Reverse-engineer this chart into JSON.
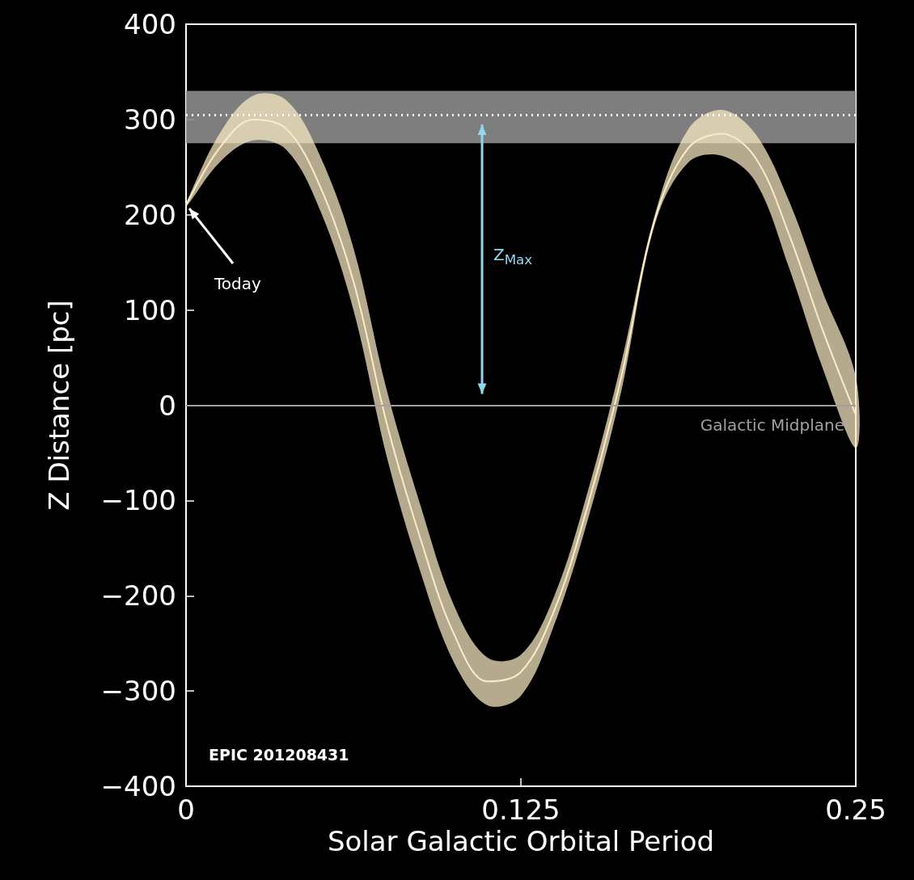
{
  "chart_data": {
    "type": "line",
    "xlabel": "Solar Galactic Orbital Period",
    "ylabel": "Z Distance [pc]",
    "x": [
      0,
      0.0125,
      0.025,
      0.0375,
      0.05,
      0.0625,
      0.075,
      0.0875,
      0.1,
      0.1125,
      0.125,
      0.1375,
      0.15,
      0.1625,
      0.175,
      0.1875,
      0.2,
      0.2125,
      0.225,
      0.2375,
      0.25
    ],
    "series": [
      {
        "color": "#fbecc4",
        "values": [
          210,
          270,
          300,
          290,
          230,
          130,
          -20,
          -140,
          -240,
          -290,
          -280,
          -215,
          -105,
          30,
          195,
          270,
          285,
          260,
          180,
          80,
          -10
        ],
        "lower": [
          208,
          255,
          278,
          268,
          205,
          100,
          -55,
          -175,
          -270,
          -315,
          -305,
          -230,
          -120,
          15,
          190,
          255,
          262,
          235,
          145,
          40,
          -45
        ],
        "upper": [
          212,
          285,
          325,
          320,
          262,
          165,
          15,
          -105,
          -210,
          -265,
          -262,
          -200,
          -90,
          45,
          200,
          290,
          310,
          285,
          215,
          120,
          30
        ]
      }
    ],
    "xlim": [
      0,
      0.25
    ],
    "ylim": [
      -400,
      400
    ],
    "xticks": [
      0,
      0.125,
      0.25
    ],
    "yticks": [
      {
        "value": -400,
        "label": "−400"
      },
      {
        "value": -300,
        "label": "−300"
      },
      {
        "value": -200,
        "label": "−200"
      },
      {
        "value": -100,
        "label": "−100"
      },
      0,
      100,
      200,
      300,
      400
    ],
    "bands": [
      {
        "axis": "y",
        "from": 275,
        "to": 330,
        "color": "#8c8c8c"
      }
    ],
    "ref_lines": [
      {
        "axis": "y",
        "value": 305,
        "color": "#ffffff",
        "line_style": "dotted"
      },
      {
        "axis": "y",
        "value": 0,
        "label": "Galactic Midplane",
        "color": "#a0a0a0",
        "line_style": "solid"
      }
    ],
    "annotations": [
      {
        "text": "Today",
        "x": 0,
        "y": 210
      },
      "Z$_{Max}$",
      "EPIC 201208431"
    ],
    "grid": false,
    "marker": "none",
    "line_style": "solid"
  }
}
